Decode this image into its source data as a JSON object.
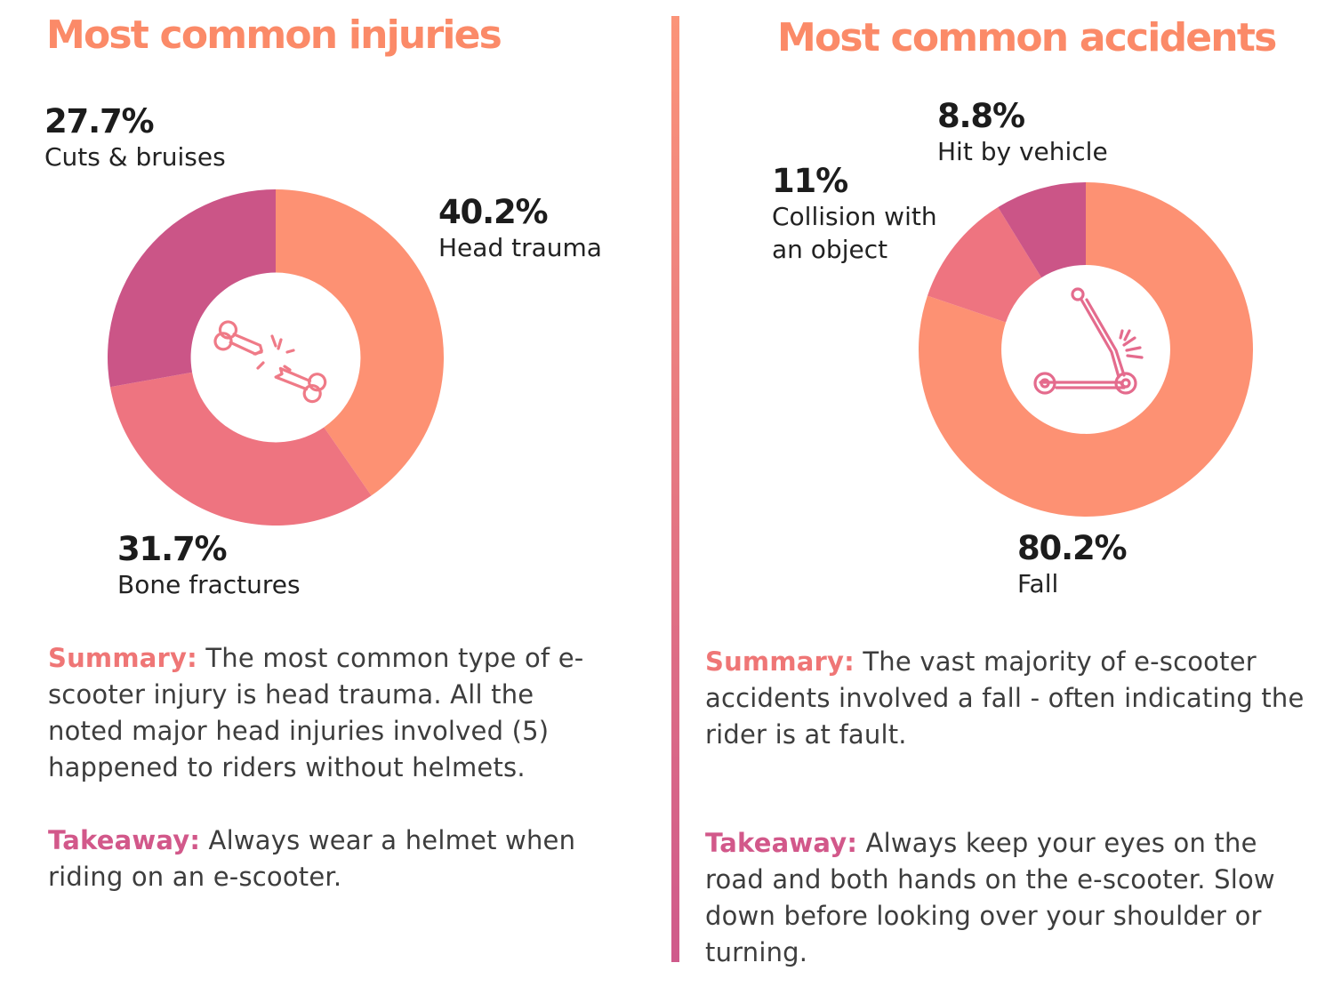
{
  "left": {
    "title": "Most common injuries",
    "summary_label": "Summary:",
    "summary": " The most common type of e-scooter injury is head trauma. All the noted major head injuries involved (5) happened to riders without helmets.",
    "takeaway_label": "Takeaway:",
    "takeaway": " Always wear a helmet when riding on an e-scooter.",
    "center_icon": "broken-bone-icon"
  },
  "right": {
    "title": "Most common accidents",
    "summary_label": "Summary:",
    "summary": " The vast majority of e-scooter accidents involved a fall - often indicating the rider is at fault.",
    "takeaway_label": "Takeaway:",
    "takeaway": " Always keep your eyes on the road and both hands on the e-scooter. Slow down before looking over your shoulder or turning.",
    "center_icon": "scooter-icon"
  },
  "chart_data": [
    {
      "type": "pie",
      "variant": "donut",
      "title": "Most common injuries",
      "categories": [
        "Head trauma",
        "Bone fractures",
        "Cuts & bruises"
      ],
      "values": [
        40.2,
        31.7,
        27.7
      ],
      "value_labels": [
        "40.2%",
        "31.7%",
        "27.7%"
      ],
      "colors": [
        "#fd9173",
        "#ee7480",
        "#cb5587"
      ],
      "start": "12 o'clock, clockwise"
    },
    {
      "type": "pie",
      "variant": "donut",
      "title": "Most common accidents",
      "categories": [
        "Fall",
        "Collision with an object",
        "Hit by vehicle"
      ],
      "values": [
        80.2,
        11,
        8.8
      ],
      "value_labels": [
        "80.2%",
        "11%",
        "8.8%"
      ],
      "colors": [
        "#fd9173",
        "#ee7480",
        "#cb5587"
      ],
      "start": "12 o'clock, clockwise"
    }
  ]
}
